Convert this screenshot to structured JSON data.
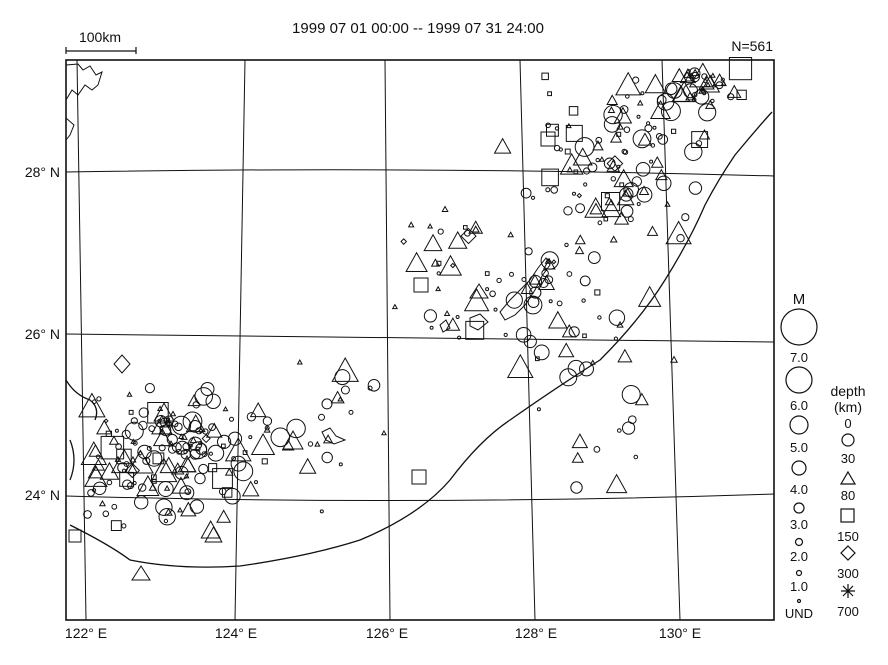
{
  "header": {
    "period": "1999 07 01 00:00 -- 1999 07 31 24:00",
    "count": "N=561",
    "scale_label": "100km"
  },
  "map": {
    "latitudes": [
      "28° N",
      "26° N",
      "24° N"
    ],
    "longitudes": [
      "122° E",
      "124° E",
      "126° E",
      "128° E",
      "130° E"
    ]
  },
  "legend": {
    "magnitude_title": "M",
    "magnitudes": [
      "7.0",
      "6.0",
      "5.0",
      "4.0",
      "3.0",
      "2.0",
      "1.0",
      "UND"
    ],
    "depth_title": "depth",
    "depth_unit": "(km)",
    "depths": [
      "0",
      "30",
      "80",
      "150",
      "300",
      "700"
    ]
  },
  "colors": {
    "ink": "#111111",
    "background": "#ffffff"
  }
}
